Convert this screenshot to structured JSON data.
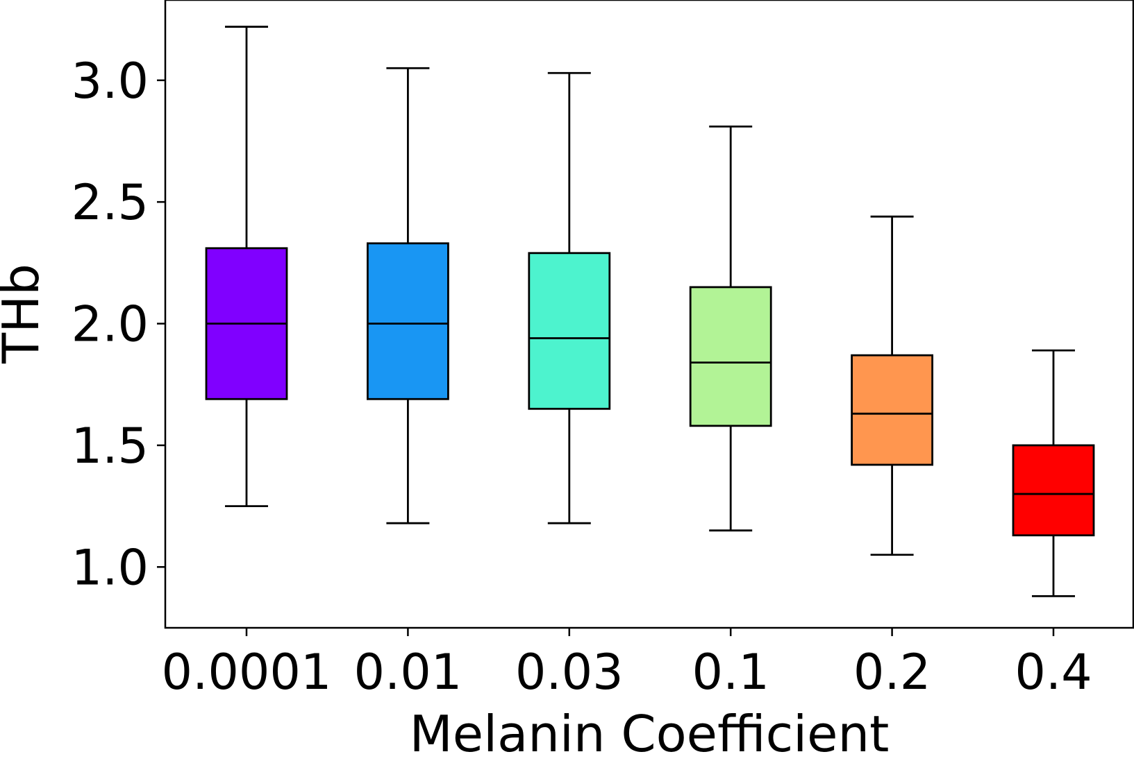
{
  "chart_data": {
    "type": "box",
    "xlabel": "Melanin Coefficient",
    "ylabel": "THb",
    "ylim": [
      0.75,
      3.33
    ],
    "yticks": [
      1.0,
      1.5,
      2.0,
      2.5,
      3.0
    ],
    "ytick_labels": [
      "1.0",
      "1.5",
      "2.0",
      "2.5",
      "3.0"
    ],
    "grid": false,
    "categories": [
      "0.0001",
      "0.01",
      "0.03",
      "0.1",
      "0.2",
      "0.4"
    ],
    "boxes": [
      {
        "category": "0.0001",
        "whisker_low": 1.25,
        "q1": 1.69,
        "median": 2.0,
        "q3": 2.31,
        "whisker_high": 3.22,
        "color": "#8000ff"
      },
      {
        "category": "0.01",
        "whisker_low": 1.18,
        "q1": 1.69,
        "median": 2.0,
        "q3": 2.33,
        "whisker_high": 3.05,
        "color": "#1996f3"
      },
      {
        "category": "0.03",
        "whisker_low": 1.18,
        "q1": 1.65,
        "median": 1.94,
        "q3": 2.29,
        "whisker_high": 3.03,
        "color": "#4df3ce"
      },
      {
        "category": "0.1",
        "whisker_low": 1.15,
        "q1": 1.58,
        "median": 1.84,
        "q3": 2.15,
        "whisker_high": 2.81,
        "color": "#b2f396"
      },
      {
        "category": "0.2",
        "whisker_low": 1.05,
        "q1": 1.42,
        "median": 1.63,
        "q3": 1.87,
        "whisker_high": 2.44,
        "color": "#ff964f"
      },
      {
        "category": "0.4",
        "whisker_low": 0.88,
        "q1": 1.13,
        "median": 1.3,
        "q3": 1.5,
        "whisker_high": 1.89,
        "color": "#ff0000"
      }
    ]
  }
}
